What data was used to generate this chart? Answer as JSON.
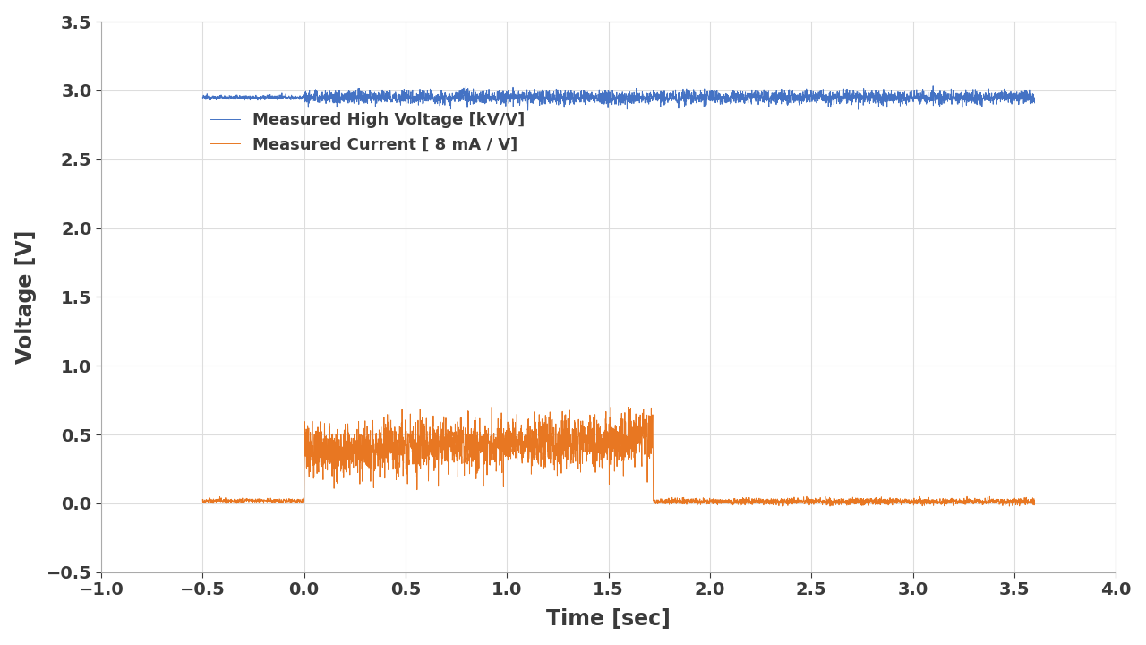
{
  "title": "",
  "xlabel": "Time [sec]",
  "ylabel": "Voltage [V]",
  "xlim": [
    -1,
    4
  ],
  "ylim": [
    -0.5,
    3.5
  ],
  "xticks": [
    -1,
    -0.5,
    0,
    0.5,
    1,
    1.5,
    2,
    2.5,
    3,
    3.5,
    4
  ],
  "yticks": [
    -0.5,
    0,
    0.5,
    1,
    1.5,
    2,
    2.5,
    3,
    3.5
  ],
  "hv_color": "#4472C4",
  "current_color": "#E87722",
  "hv_label": "Measured High Voltage [kV/V]",
  "current_label": "Measured Current [ 8 mA / V]",
  "hv_mean": 2.95,
  "hv_noise_low": 0.008,
  "hv_noise_high": 0.025,
  "current_off_level": 0.02,
  "current_off_noise": 0.008,
  "current_on_mean": 0.43,
  "current_on_noise": 0.1,
  "background_color": "#FFFFFF",
  "plot_bg_color": "#F5F5F5",
  "grid_color": "#DDDDDD",
  "spine_color": "#AAAAAA",
  "legend_fontsize": 13,
  "axis_label_fontsize": 17,
  "tick_fontsize": 14,
  "font_color": "#3A3A3A"
}
